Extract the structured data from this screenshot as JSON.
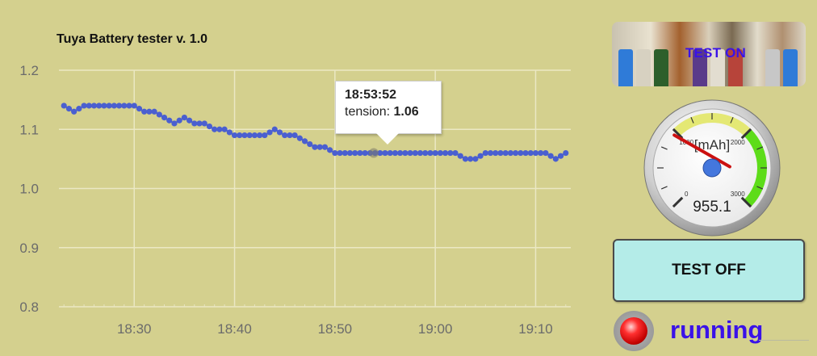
{
  "chart_data": {
    "type": "line",
    "title": "Tuya Battery tester v. 1.0",
    "series": [
      {
        "x": [
          "18:23",
          "18:24",
          "18:25",
          "18:26",
          "18:27",
          "18:28",
          "18:29",
          "18:30",
          "18:31",
          "18:32",
          "18:33",
          "18:34",
          "18:35",
          "18:36",
          "18:37",
          "18:38",
          "18:39",
          "18:40",
          "18:41",
          "18:42",
          "18:43",
          "18:44",
          "18:45",
          "18:46",
          "18:47",
          "18:48",
          "18:49",
          "18:50",
          "18:51",
          "18:52",
          "18:53",
          "18:54",
          "18:55",
          "18:56",
          "18:57",
          "18:58",
          "18:59",
          "19:00",
          "19:01",
          "19:02",
          "19:03",
          "19:04",
          "19:05",
          "19:06",
          "19:07",
          "19:08",
          "19:09",
          "19:10",
          "19:11",
          "19:12",
          "19:13"
        ],
        "values": [
          1.14,
          1.13,
          1.14,
          1.14,
          1.14,
          1.14,
          1.14,
          1.14,
          1.13,
          1.13,
          1.12,
          1.11,
          1.12,
          1.11,
          1.11,
          1.1,
          1.1,
          1.09,
          1.09,
          1.09,
          1.09,
          1.1,
          1.09,
          1.09,
          1.08,
          1.07,
          1.07,
          1.06,
          1.06,
          1.06,
          1.06,
          1.06,
          1.06,
          1.06,
          1.06,
          1.06,
          1.06,
          1.06,
          1.06,
          1.06,
          1.05,
          1.05,
          1.06,
          1.06,
          1.06,
          1.06,
          1.06,
          1.06,
          1.06,
          1.05,
          1.06
        ]
      }
    ],
    "x_ticks": [
      "18:30",
      "18:40",
      "18:50",
      "19:00",
      "19:10"
    ],
    "y_ticks": [
      "0.8",
      "0.9",
      "1.0",
      "1.1",
      "1.2"
    ],
    "ylim": [
      0.8,
      1.2
    ],
    "xlim": [
      "18:22.5",
      "19:13.5"
    ],
    "grid": true,
    "line_color": "#4a5fd0",
    "tooltip": {
      "time": "18:53:52",
      "label": "tension:",
      "value": "1.06"
    }
  },
  "panel": {
    "image_button_label": "TEST ON",
    "gauge": {
      "unit": "[mAh]",
      "scale_labels": [
        "0",
        "1000",
        "2000",
        "3000"
      ],
      "value": 955.1,
      "value_text": "955.1",
      "max": 3000
    },
    "test_off_label": "TEST OFF",
    "status_text": "running"
  },
  "colors": {
    "background": "#d4d08e",
    "accent": "#3a12e8",
    "button": "#b4ece8",
    "led": "#ff2020",
    "gauge_green": "#5ddc19",
    "gauge_yellow": "#e4e874"
  },
  "icons": {
    "led": "status-led-icon",
    "battery": "battery-photo-icon"
  }
}
